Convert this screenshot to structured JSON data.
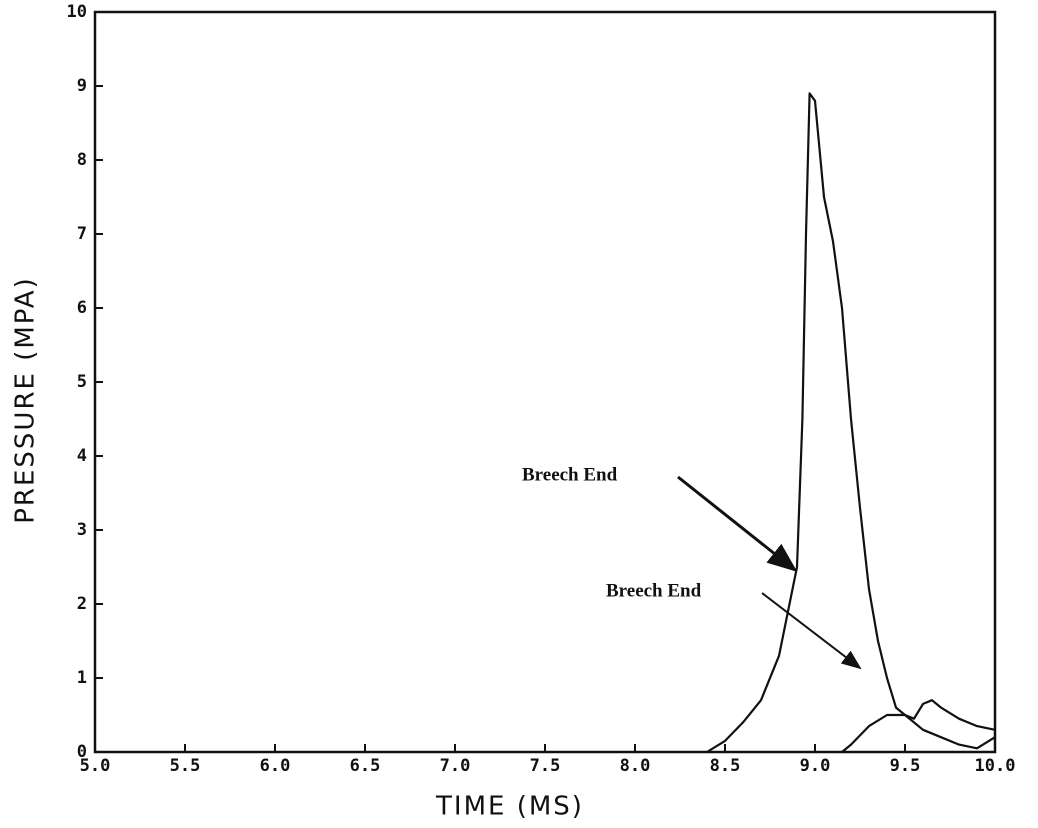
{
  "chart_data": {
    "type": "line",
    "xlabel": "TIME (MS)",
    "ylabel": "PRESSURE (MPA)",
    "xlim": [
      5,
      10
    ],
    "ylim": [
      0,
      10
    ],
    "xticks": [
      {
        "value": 5,
        "label": "5.0"
      },
      {
        "value": 5.5,
        "label": "5.5"
      },
      {
        "value": 6,
        "label": "6.0"
      },
      {
        "value": 6.5,
        "label": "6.5"
      },
      {
        "value": 7,
        "label": "7.0"
      },
      {
        "value": 7.5,
        "label": "7.5"
      },
      {
        "value": 8,
        "label": "8.0"
      },
      {
        "value": 8.5,
        "label": "8.5"
      },
      {
        "value": 9,
        "label": "9.0"
      },
      {
        "value": 9.5,
        "label": "9.5"
      },
      {
        "value": 10,
        "label": "10.0"
      }
    ],
    "yticks": [
      0,
      1,
      2,
      3,
      4,
      5,
      6,
      7,
      8,
      9,
      10
    ],
    "annotations": [
      "Breech End",
      "Breech End"
    ],
    "series": [
      {
        "color": "#111111",
        "x": [
          8.4,
          8.5,
          8.6,
          8.7,
          8.8,
          8.85,
          8.9,
          8.93,
          8.95,
          8.97,
          9.0,
          9.05,
          9.1,
          9.15,
          9.2,
          9.25,
          9.3,
          9.35,
          9.4,
          9.45,
          9.5,
          9.6,
          9.7,
          9.8,
          9.9,
          10.0
        ],
        "values": [
          0,
          0.15,
          0.4,
          0.7,
          1.3,
          1.9,
          2.5,
          4.5,
          7.0,
          8.9,
          8.8,
          7.5,
          6.9,
          6.0,
          4.5,
          3.3,
          2.2,
          1.5,
          1.0,
          0.6,
          0.5,
          0.3,
          0.2,
          0.1,
          0.05,
          0.2
        ]
      },
      {
        "color": "#111111",
        "x": [
          9.15,
          9.2,
          9.3,
          9.4,
          9.5,
          9.55,
          9.6,
          9.65,
          9.7,
          9.8,
          9.9,
          10.0
        ],
        "values": [
          0,
          0.1,
          0.35,
          0.5,
          0.5,
          0.45,
          0.65,
          0.7,
          0.6,
          0.45,
          0.35,
          0.3
        ]
      }
    ]
  }
}
